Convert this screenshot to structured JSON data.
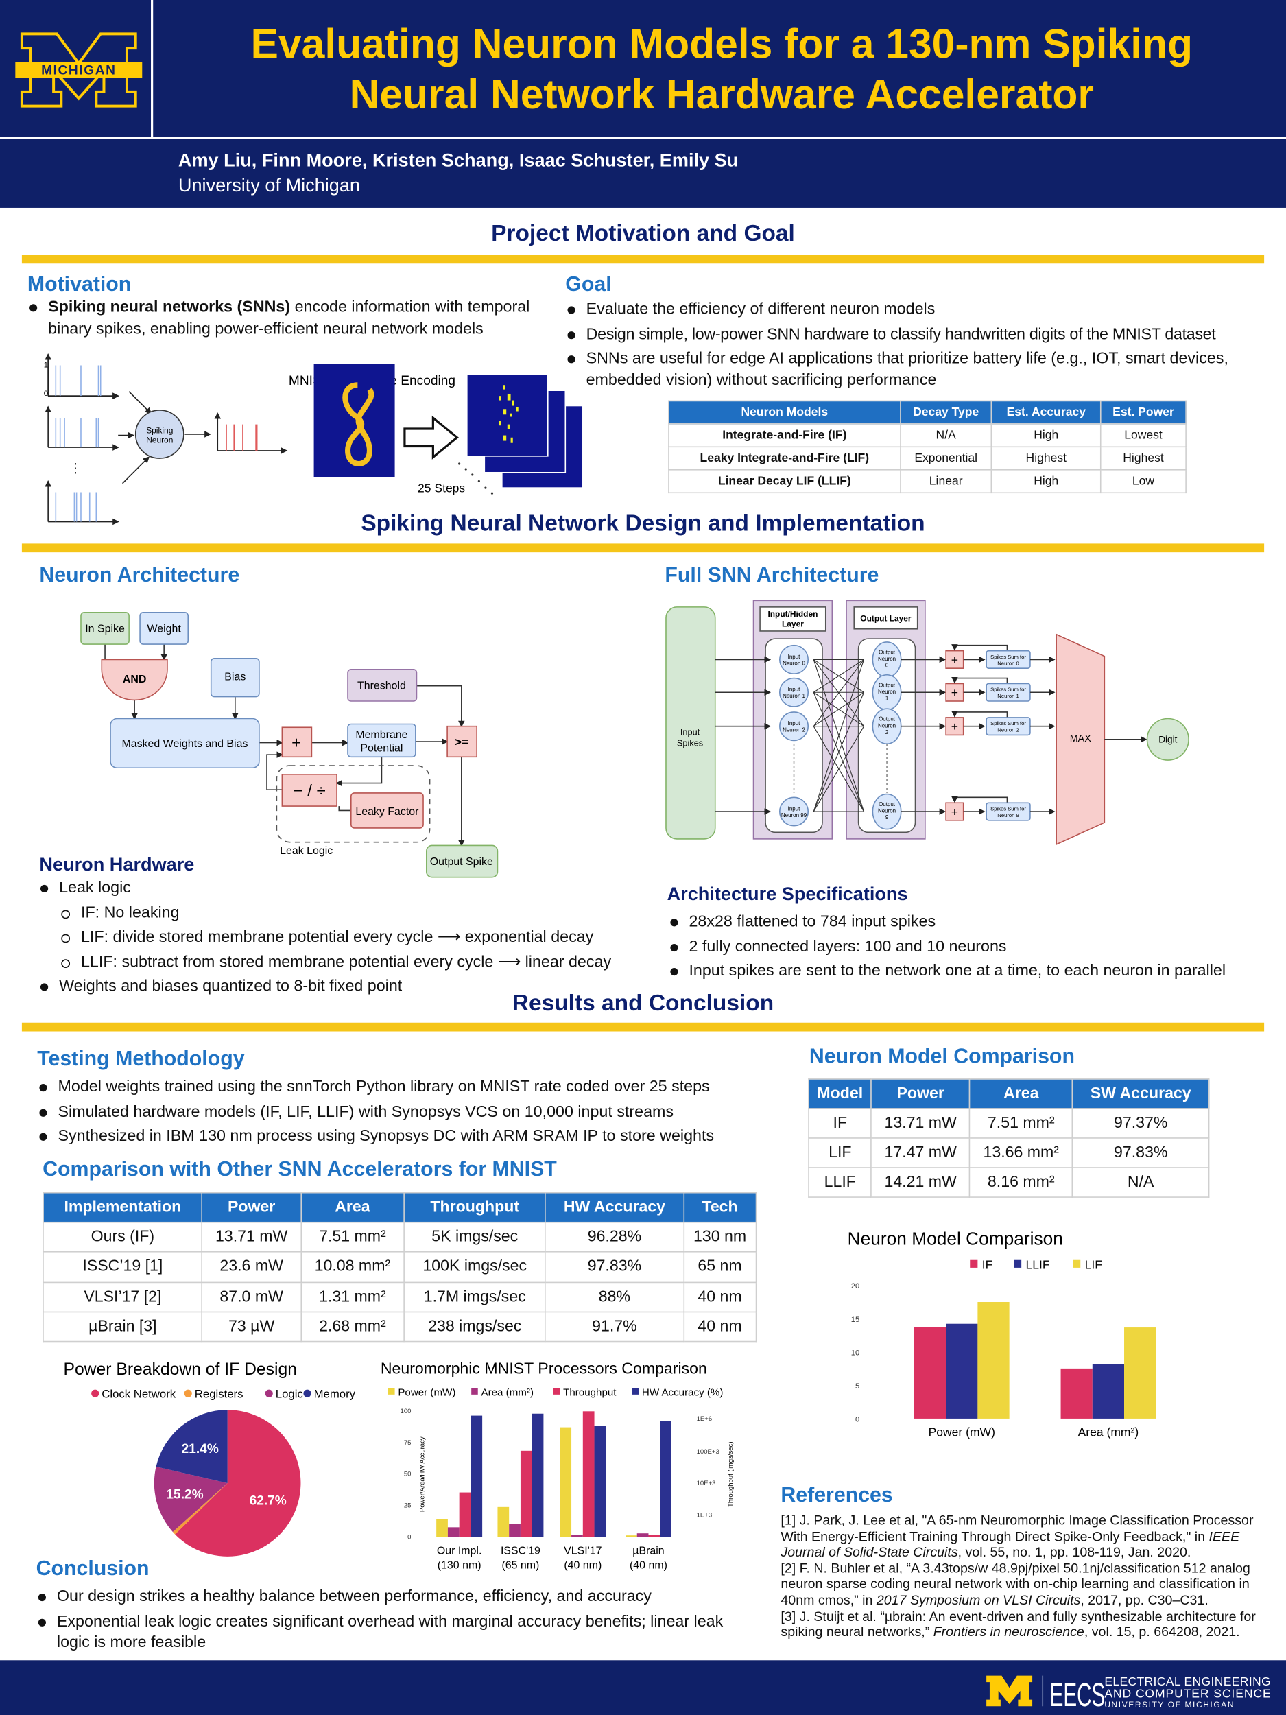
{
  "header": {
    "title_line1": "Evaluating Neuron Models for a 130-nm Spiking",
    "title_line2": "Neural Network Hardware Accelerator",
    "authors": "Amy Liu, Finn Moore, Kristen Schang, Isaac Schuster, Emily Su",
    "affiliation": "University of Michigan",
    "logo_text": "MICHIGAN"
  },
  "colors": {
    "navy": "#0f2068",
    "gold": "#ffcb05",
    "accent_blue": "#1f72c3",
    "section": "#0c1f6e",
    "if": "#db3160",
    "llif": "#2b3190",
    "lif": "#eed63e",
    "area": "#a6337f"
  },
  "sections": {
    "s1": "Project Motivation and Goal",
    "s2": "Spiking Neural Network Design and Implementation",
    "s3": "Results and Conclusion"
  },
  "motivation": {
    "heading": "Motivation",
    "bold": "Spiking neural networks (SNNs)",
    "rest": " encode information with temporal binary spikes, enabling power-efficient neural network models",
    "neuron_label": [
      "Spiking",
      "Neuron"
    ],
    "mnist_label": "MNIST Spike Rate Encoding",
    "steps_label": "25 Steps",
    "axis_one": "1",
    "axis_zero": "0"
  },
  "goal": {
    "heading": "Goal",
    "bullets": [
      "Evaluate the efficiency of different neuron models",
      "Design simple, low-power SNN hardware to classify handwritten digits of the MNIST dataset",
      "SNNs are useful for edge AI applications that prioritize battery life (e.g., IOT, smart devices, embedded vision) without sacrificing performance"
    ]
  },
  "models_table": {
    "headers": [
      "Neuron Models",
      "Decay Type",
      "Est. Accuracy",
      "Est. Power"
    ],
    "rows": [
      [
        "Integrate-and-Fire (IF)",
        "N/A",
        "High",
        "Lowest"
      ],
      [
        "Leaky Integrate-and-Fire (LIF)",
        "Exponential",
        "Highest",
        "Highest"
      ],
      [
        "Linear Decay LIF (LLIF)",
        "Linear",
        "High",
        "Low"
      ]
    ]
  },
  "neuron_arch": {
    "heading": "Neuron Architecture",
    "in_spike": "In Spike",
    "weight": "Weight",
    "and": "AND",
    "bias": "Bias",
    "threshold": "Threshold",
    "masked": "Masked Weights and Bias",
    "plus": "+",
    "membrane": [
      "Membrane",
      "Potential"
    ],
    "ge": ">=",
    "subdiv": "− / ÷",
    "leaky_factor": "Leaky Factor",
    "leak_logic": "Leak Logic",
    "output_spike": "Output Spike"
  },
  "neuron_hw": {
    "heading": "Neuron Hardware",
    "b1": "Leak logic",
    "subs": [
      "IF: No leaking",
      "LIF: divide stored membrane potential every cycle ⟶ exponential decay",
      "LLIF: subtract from stored membrane potential every cycle ⟶ linear decay"
    ],
    "b2": "Weights and biases quantized to 8-bit fixed point"
  },
  "snn_arch": {
    "heading": "Full SNN Architecture",
    "input_spikes": [
      "Input",
      "Spikes"
    ],
    "layer1": [
      "Input/Hidden",
      "Layer"
    ],
    "layer2": "Output Layer",
    "in_neurons": [
      [
        "Input",
        "Neuron 0"
      ],
      [
        "Input",
        "Neuron 1"
      ],
      [
        "Input",
        "Neuron 2"
      ],
      [
        "Input",
        "Neuron 99"
      ]
    ],
    "out_neurons": [
      [
        "Output",
        "Neuron",
        "0"
      ],
      [
        "Output",
        "Neuron",
        "1"
      ],
      [
        "Output",
        "Neuron",
        "2"
      ],
      [
        "Output",
        "Neuron",
        "9"
      ]
    ],
    "sums": [
      [
        "Spikes Sum for",
        "Neuron 0"
      ],
      [
        "Spikes Sum for",
        "Neuron 1"
      ],
      [
        "Spikes Sum for",
        "Neuron 2"
      ],
      [
        "Spikes Sum for",
        "Neuron 9"
      ]
    ],
    "plus": "+",
    "max": "MAX",
    "digit": "Digit"
  },
  "arch_specs": {
    "heading": "Architecture Specifications",
    "bullets": [
      "28x28 flattened to 784 input spikes",
      "2 fully connected layers: 100 and 10 neurons",
      "Input spikes are sent to the network one at a time, to each neuron in parallel"
    ]
  },
  "testing": {
    "heading": "Testing Methodology",
    "bullets": [
      "Model weights trained using the snnTorch Python library on MNIST rate coded over 25 steps",
      "Simulated hardware models (IF, LIF, LLIF) with Synopsys VCS on 10,000 input streams",
      "Synthesized in IBM 130 nm process using Synopsys DC with ARM SRAM IP to store weights"
    ]
  },
  "comparison": {
    "heading": "Comparison with Other SNN Accelerators for MNIST",
    "headers": [
      "Implementation",
      "Power",
      "Area",
      "Throughput",
      "HW Accuracy",
      "Tech"
    ],
    "rows": [
      [
        "Ours (IF)",
        "13.71 mW",
        "7.51 mm²",
        "5K imgs/sec",
        "96.28%",
        "130 nm"
      ],
      [
        "ISSC’19 [1]",
        "23.6 mW",
        "10.08 mm²",
        "100K imgs/sec",
        "97.83%",
        "65 nm"
      ],
      [
        "VLSI’17 [2]",
        "87.0 mW",
        "1.31 mm²",
        "1.7M imgs/sec",
        "88%",
        "40 nm"
      ],
      [
        "µBrain [3]",
        "73 µW",
        "2.68 mm²",
        "238 imgs/sec",
        "91.7%",
        "40 nm"
      ]
    ]
  },
  "nm_table": {
    "heading": "Neuron Model Comparison",
    "headers": [
      "Model",
      "Power",
      "Area",
      "SW Accuracy"
    ],
    "rows": [
      [
        "IF",
        "13.71 mW",
        "7.51 mm²",
        "97.37%"
      ],
      [
        "LIF",
        "17.47 mW",
        "13.66 mm²",
        "97.83%"
      ],
      [
        "LLIF",
        "14.21 mW",
        "8.16 mm²",
        "N/A"
      ]
    ]
  },
  "chart_data": [
    {
      "type": "bar",
      "title": "Neuron Model Comparison",
      "categories": [
        "Power (mW)",
        "Area (mm²)"
      ],
      "series": [
        {
          "name": "IF",
          "color": "#db3160",
          "values": [
            13.71,
            7.51
          ]
        },
        {
          "name": "LLIF",
          "color": "#2b3190",
          "values": [
            14.21,
            8.16
          ]
        },
        {
          "name": "LIF",
          "color": "#eed63e",
          "values": [
            17.47,
            13.66
          ]
        }
      ],
      "ylim": [
        0,
        20
      ],
      "yticks": [
        "0",
        "5",
        "10",
        "15",
        "20"
      ],
      "legend": "top"
    },
    {
      "type": "pie",
      "title": "Power Breakdown of IF Design",
      "slices": [
        {
          "name": "Clock Network",
          "value": 62.7,
          "label": "62.7%",
          "color": "#db3160"
        },
        {
          "name": "Registers",
          "value": 0.7,
          "label": "",
          "color": "#f59c3c"
        },
        {
          "name": "Logic",
          "value": 15.2,
          "label": "15.2%",
          "color": "#a6337f"
        },
        {
          "name": "Memory",
          "value": 21.4,
          "label": "21.4%",
          "color": "#2b3190"
        }
      ],
      "legend": "top"
    },
    {
      "type": "bar",
      "title": "Neuromorphic MNIST Processors Comparison",
      "categories": [
        [
          "Our Impl.",
          "(130 nm)"
        ],
        [
          "ISSC'19",
          "(65 nm)"
        ],
        [
          "VLSI'17",
          "(40 nm)"
        ],
        [
          "µBrain",
          "(40 nm)"
        ]
      ],
      "series": [
        {
          "name": "Power (mW)",
          "color": "#eed63e",
          "axis": "left",
          "values": [
            13.71,
            23.6,
            87.0,
            0.073
          ]
        },
        {
          "name": "Area (mm²)",
          "color": "#a6337f",
          "axis": "left",
          "values": [
            7.51,
            10.08,
            1.31,
            2.68
          ]
        },
        {
          "name": "Throughput",
          "color": "#db3160",
          "axis": "right",
          "values": [
            5000,
            100000,
            1700000,
            238
          ]
        },
        {
          "name": "HW Accuracy (%)",
          "color": "#2b3190",
          "axis": "left",
          "values": [
            96.28,
            97.83,
            88,
            91.7
          ]
        }
      ],
      "ylabel": "Power/Area/HW Accuracy",
      "ylim": [
        0,
        100
      ],
      "yticks": [
        "0",
        "25",
        "50",
        "75",
        "100"
      ],
      "y2label": "Throughput (imgs/sec)",
      "y2scale": "log",
      "y2ticks": [
        "1E+3",
        "10E+3",
        "100E+3",
        "1E+6"
      ],
      "legend": "top"
    }
  ],
  "conclusion": {
    "heading": "Conclusion",
    "bullets": [
      "Our design strikes a healthy balance between performance, efficiency, and accuracy",
      "Exponential leak logic creates significant overhead with marginal accuracy benefits; linear leak logic is more feasible"
    ]
  },
  "references": {
    "heading": "References",
    "items": [
      [
        "[1] J. Park, J. Lee et al, \"A 65-nm Neuromorphic Image Classification Processor With Energy-Efficient Training Through Direct Spike-Only Feedback,\" in ",
        "IEEE Journal of Solid-State Circuits",
        ", vol. 55, no. 1, pp. 108-119, Jan. 2020."
      ],
      [
        "[2] F. N. Buhler et al, “A 3.43tops/w 48.9pj/pixel 50.1nj/classification 512 analog neuron sparse coding neural network with on-chip learning and classification in 40nm cmos,” in ",
        "2017 Symposium on VLSI Circuits",
        ", 2017, pp. C30–C31."
      ],
      [
        "[3] J. Stuijt et al. “µbrain: An event-driven and fully synthesizable architecture for spiking neural networks,” ",
        "Frontiers in neuroscience",
        ", vol. 15, p. 664208, 2021."
      ]
    ]
  },
  "footer": {
    "eecs": "EECS",
    "line1": "ELECTRICAL ENGINEERING",
    "line2": "AND COMPUTER SCIENCE",
    "line3": "UNIVERSITY OF MICHIGAN"
  }
}
